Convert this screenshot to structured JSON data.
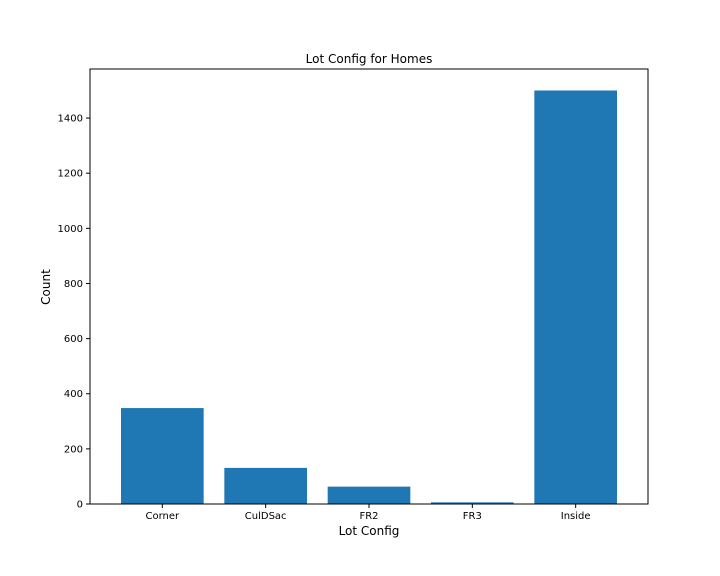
{
  "chart_data": {
    "type": "bar",
    "title": "Lot Config for Homes",
    "xlabel": "Lot Config",
    "ylabel": "Count",
    "categories": [
      "Corner",
      "CulDSac",
      "FR2",
      "FR3",
      "Inside"
    ],
    "values": [
      348,
      131,
      63,
      6,
      1500
    ],
    "ylim": [
      0,
      1578
    ],
    "yticks": [
      0,
      200,
      400,
      600,
      800,
      1000,
      1200,
      1400
    ],
    "bar_color": "#1f77b4",
    "grid": false,
    "legend": "none"
  }
}
